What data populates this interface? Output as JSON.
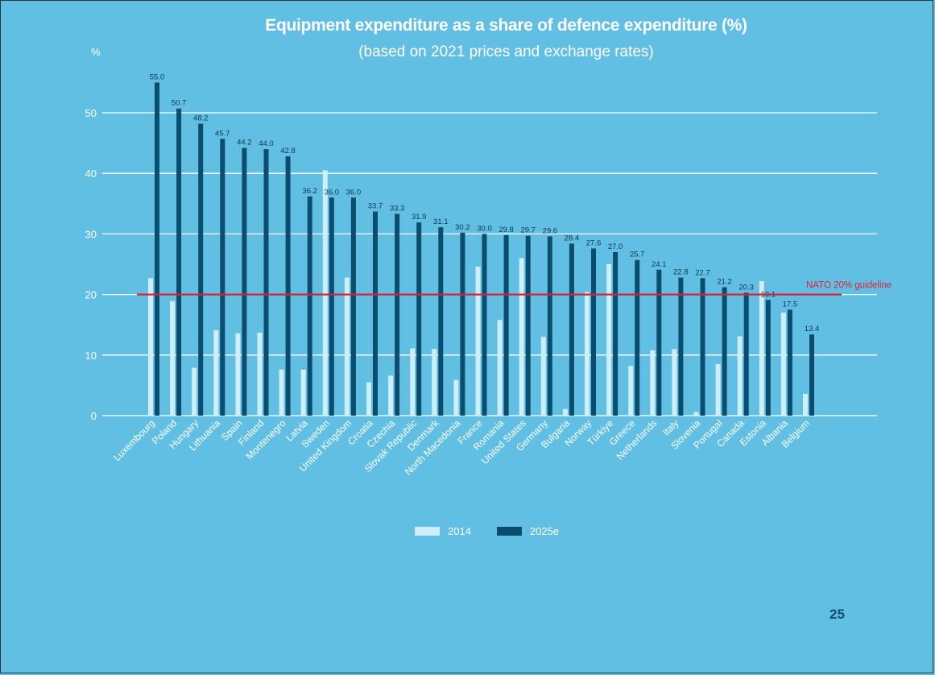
{
  "page": {
    "number": "25"
  },
  "colors": {
    "background": "#62bfe4",
    "series_2014": "#cdeefa",
    "series_2025": "#0b4d6e",
    "grid": "#ffffff",
    "guideline": "#e0212d",
    "label": "#0b3850"
  },
  "chart_data": {
    "type": "bar",
    "title": "Equipment expenditure as a share of defence expenditure (%)",
    "subtitle": "(based on 2021 prices and exchange rates)",
    "ylabel": "%",
    "ylim": [
      0,
      60
    ],
    "yticks": [
      0,
      10,
      20,
      30,
      40,
      50
    ],
    "categories": [
      "Luxembourg",
      "Poland",
      "Hungary",
      "Lithuania",
      "Spain",
      "Finland",
      "Montenegro",
      "Latvia",
      "Sweden",
      "United Kingdom",
      "Croatia",
      "Czechia",
      "Slovak Republic",
      "Denmark",
      "North Macedonia",
      "France",
      "Romania",
      "United States",
      "Germany",
      "Bulgaria",
      "Norway",
      "Türkiye",
      "Greece",
      "Netherlands",
      "Italy",
      "Slovenia",
      "Portugal",
      "Canada",
      "Estonia",
      "Albania",
      "Belgium"
    ],
    "series": [
      {
        "name": "2014",
        "values": [
          22.7,
          18.9,
          7.9,
          14.1,
          13.6,
          13.7,
          7.6,
          7.6,
          40.5,
          22.8,
          5.5,
          6.6,
          11.1,
          11.0,
          5.9,
          24.6,
          15.8,
          26.0,
          13.0,
          1.1,
          20.4,
          25.0,
          8.2,
          10.8,
          11.0,
          0.6,
          8.5,
          13.1,
          22.2,
          17.0,
          3.6
        ]
      },
      {
        "name": "2025e",
        "values": [
          55.0,
          50.7,
          48.2,
          45.7,
          44.2,
          44.0,
          42.8,
          36.2,
          36.0,
          36.0,
          33.7,
          33.3,
          31.9,
          31.1,
          30.2,
          30.0,
          29.8,
          29.7,
          29.6,
          28.4,
          27.6,
          27.0,
          25.7,
          24.1,
          22.8,
          22.7,
          21.2,
          20.3,
          19.1,
          17.5,
          13.4
        ],
        "labels": [
          "55.0",
          "50.7",
          "48.2",
          "45.7",
          "44.2",
          "44.0",
          "42.8",
          "36.2",
          "36.0",
          "36.0",
          "33.7",
          "33.3",
          "31.9",
          "31.1",
          "30.2",
          "30.0",
          "29.8",
          "29.7",
          "29.6",
          "28.4",
          "27.6",
          "27.0",
          "25.7",
          "24.1",
          "22.8",
          "22.7",
          "21.2",
          "20.3",
          "19.1",
          "17.5",
          "13.4"
        ]
      }
    ],
    "reference_line": {
      "value": 20,
      "label": "NATO 20% guideline"
    },
    "legend": [
      "2014",
      "2025e"
    ],
    "legend_position": "bottom-center"
  }
}
